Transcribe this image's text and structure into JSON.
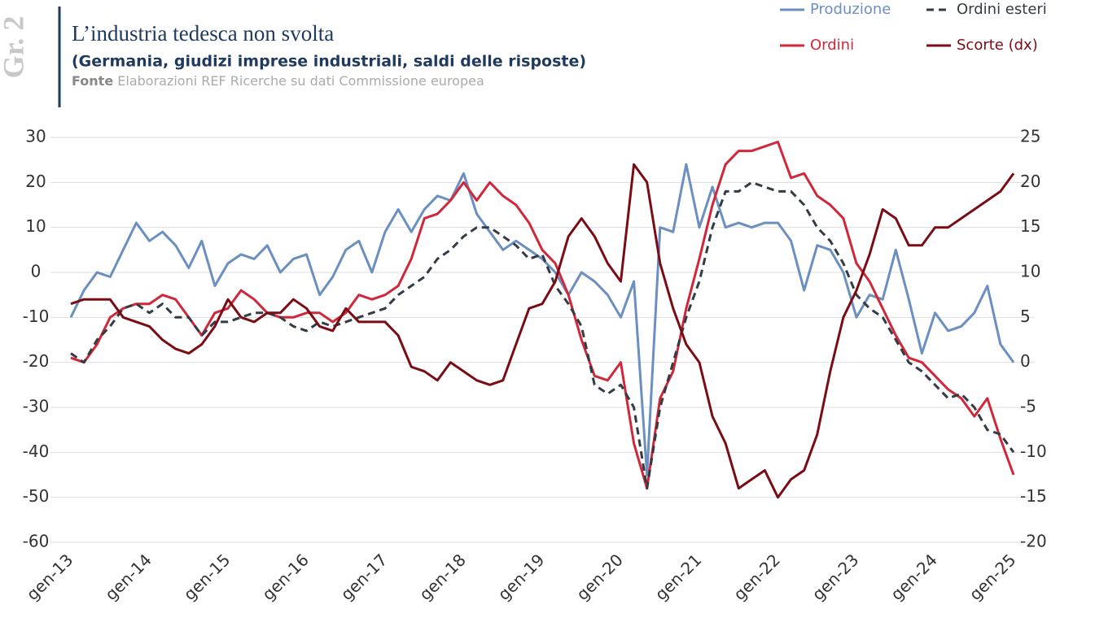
{
  "chart_data": {
    "type": "line",
    "panel_label": "Gr. 2",
    "title": "L’industria tedesca non svolta",
    "subtitle": "(Germania, giudizi imprese industriali, saldi delle risposte)",
    "source_label": "Fonte",
    "source": "Elaborazioni REF Ricerche su dati Commissione europea",
    "categories": [
      "gen-13",
      null,
      null,
      null,
      null,
      null,
      "gen-14",
      null,
      null,
      null,
      null,
      null,
      "gen-15",
      null,
      null,
      null,
      null,
      null,
      "gen-16",
      null,
      null,
      null,
      null,
      null,
      "gen-17",
      null,
      null,
      null,
      null,
      null,
      "gen-18",
      null,
      null,
      null,
      null,
      null,
      "gen-19",
      null,
      null,
      null,
      null,
      null,
      "gen-20",
      null,
      null,
      null,
      null,
      null,
      "gen-21",
      null,
      null,
      null,
      null,
      null,
      "gen-22",
      null,
      null,
      null,
      null,
      null,
      "gen-23",
      null,
      null,
      null,
      null,
      null,
      "gen-24",
      null,
      null,
      null,
      null,
      null,
      "gen-25"
    ],
    "series": [
      {
        "name": "Produzione",
        "color": "#6a8fc0",
        "dash": false,
        "values": [
          -10,
          -4,
          0,
          -1,
          5,
          11,
          7,
          9,
          6,
          1,
          7,
          -3,
          2,
          4,
          3,
          6,
          0,
          3,
          4,
          -5,
          -1,
          5,
          7,
          0,
          9,
          14,
          9,
          14,
          17,
          16,
          22,
          13,
          9,
          5,
          7,
          5,
          3,
          0,
          -5,
          0,
          -2,
          -5,
          -10,
          -2,
          -45,
          10,
          9,
          24,
          10,
          19,
          10,
          11,
          10,
          11,
          11,
          7,
          -4,
          6,
          5,
          0,
          -10,
          -5,
          -6,
          5,
          -6,
          -18,
          -9,
          -13,
          -12,
          -9,
          -3,
          -16,
          -20
        ]
      },
      {
        "name": "Ordini",
        "color": "#d0273a",
        "dash": false,
        "values": [
          -19,
          -20,
          -16,
          -10,
          -8,
          -7,
          -7,
          -5,
          -6,
          -10,
          -14,
          -9,
          -8,
          -4,
          -6,
          -9,
          -10,
          -10,
          -9,
          -9,
          -11,
          -9,
          -5,
          -6,
          -5,
          -3,
          3,
          12,
          13,
          16,
          20,
          16,
          20,
          17,
          15,
          11,
          5,
          2,
          -5,
          -15,
          -23,
          -24,
          -20,
          -38,
          -48,
          -28,
          -22,
          -8,
          3,
          15,
          24,
          27,
          27,
          28,
          29,
          21,
          22,
          17,
          15,
          12,
          2,
          -2,
          -8,
          -14,
          -19,
          -20,
          -23,
          -26,
          -28,
          -32,
          -28,
          -37,
          -45
        ]
      },
      {
        "name": "Ordini esteri",
        "color": "#333b45",
        "dash": true,
        "values": [
          -18,
          -20,
          -15,
          -12,
          -8,
          -7,
          -9,
          -7,
          -10,
          -10,
          -14,
          -11,
          -11,
          -10,
          -9,
          -9,
          -10,
          -12,
          -13,
          -11,
          -12,
          -11,
          -10,
          -9,
          -8,
          -5,
          -3,
          -1,
          3,
          5,
          8,
          10,
          10,
          8,
          6,
          3,
          4,
          -3,
          -7,
          -12,
          -25,
          -27,
          -25,
          -30,
          -48,
          -30,
          -20,
          -10,
          -2,
          10,
          18,
          18,
          20,
          19,
          18,
          18,
          15,
          10,
          7,
          2,
          -5,
          -8,
          -10,
          -15,
          -20,
          -22,
          -25,
          -28,
          -27,
          -30,
          -35,
          -36,
          -40
        ]
      },
      {
        "name": "Scorte (dx)",
        "color": "#7a0c14",
        "dash": false,
        "axis": "y2",
        "values": [
          6.5,
          7,
          7,
          7,
          5,
          4.5,
          4,
          2.5,
          1.5,
          1,
          2,
          4,
          7,
          5,
          4.5,
          5.5,
          5.5,
          7,
          6,
          4,
          3.5,
          6,
          4.5,
          4.5,
          4.5,
          3,
          -0.5,
          -1,
          -2,
          0,
          -1,
          -2,
          -2.5,
          -2,
          2,
          6,
          6.5,
          9,
          14,
          16,
          14,
          11,
          9,
          22,
          20,
          11,
          6,
          2,
          0,
          -6,
          -9,
          -14,
          -13,
          -12,
          -15,
          -13,
          -12,
          -8,
          -1,
          5,
          8,
          12,
          17,
          16,
          13,
          13,
          15,
          15,
          16,
          17,
          18,
          19,
          21
        ]
      }
    ],
    "ylim": [
      -60,
      30
    ],
    "yticks": [
      -60,
      -50,
      -40,
      -30,
      -20,
      -10,
      0,
      10,
      20,
      30
    ],
    "y2lim": [
      -20,
      25
    ],
    "y2ticks": [
      -20,
      -15,
      -10,
      -5,
      0,
      5,
      10,
      15,
      20,
      25
    ],
    "grid": true,
    "legend": "top-right"
  }
}
